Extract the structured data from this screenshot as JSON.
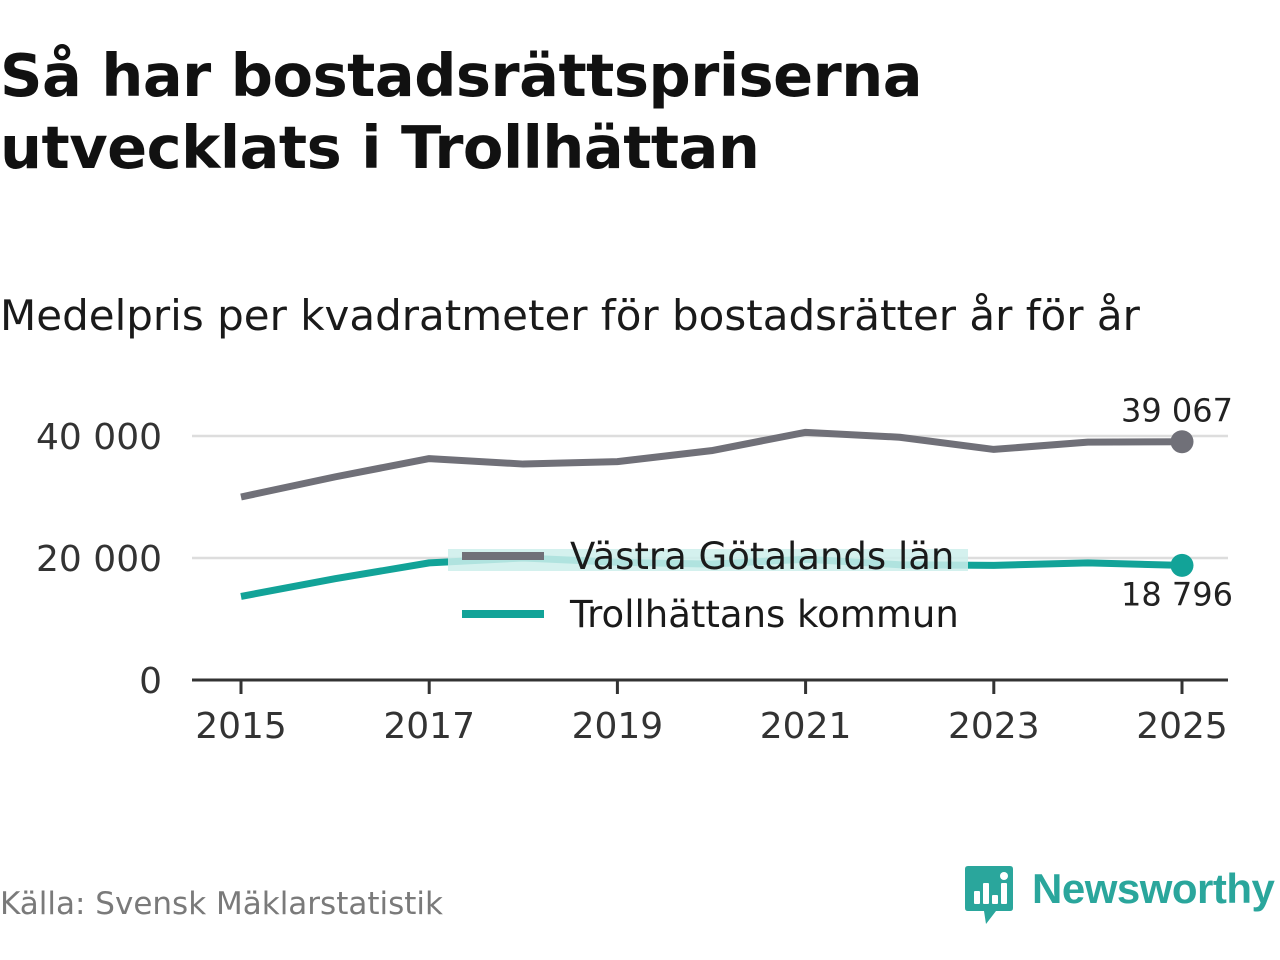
{
  "header": {
    "title": "Så har bostadsrättspriserna utvecklats i Trollhättan",
    "subtitle": "Medelpris per kvadratmeter för bostadsrätter år för år"
  },
  "footer": {
    "source": "Källa: Svensk Mäklarstatistik",
    "brand": "Newsworthy"
  },
  "colors": {
    "series1": "#707078",
    "series2": "#12a398",
    "legend_bg": "#cdeeeb",
    "brand": "#2aa69c"
  },
  "chart_data": {
    "type": "line",
    "title": "Så har bostadsrättspriserna utvecklats i Trollhättan",
    "subtitle": "Medelpris per kvadratmeter för bostadsrätter år för år",
    "xlabel": "",
    "ylabel": "",
    "x": [
      2015,
      2016,
      2017,
      2018,
      2019,
      2020,
      2021,
      2022,
      2023,
      2024,
      2025
    ],
    "xticks": [
      "2015",
      "2017",
      "2019",
      "2021",
      "2023",
      "2025"
    ],
    "yticks": [
      {
        "value": 0,
        "label": "0"
      },
      {
        "value": 20000,
        "label": "20 000"
      },
      {
        "value": 40000,
        "label": "40 000"
      }
    ],
    "ylim": [
      0,
      45000
    ],
    "xlim": [
      2014.5,
      2025.5
    ],
    "grid": true,
    "legend_position": "center",
    "series": [
      {
        "name": "Västra Götalands län",
        "values": [
          30000,
          33300,
          36300,
          35400,
          35800,
          37600,
          40600,
          39800,
          37800,
          39000,
          39067
        ],
        "end_label": "39 067"
      },
      {
        "name": "Trollhättans kommun",
        "values": [
          13700,
          16600,
          19200,
          20000,
          19300,
          19000,
          19800,
          18900,
          18800,
          19200,
          18796
        ],
        "end_label": "18 796"
      }
    ]
  }
}
